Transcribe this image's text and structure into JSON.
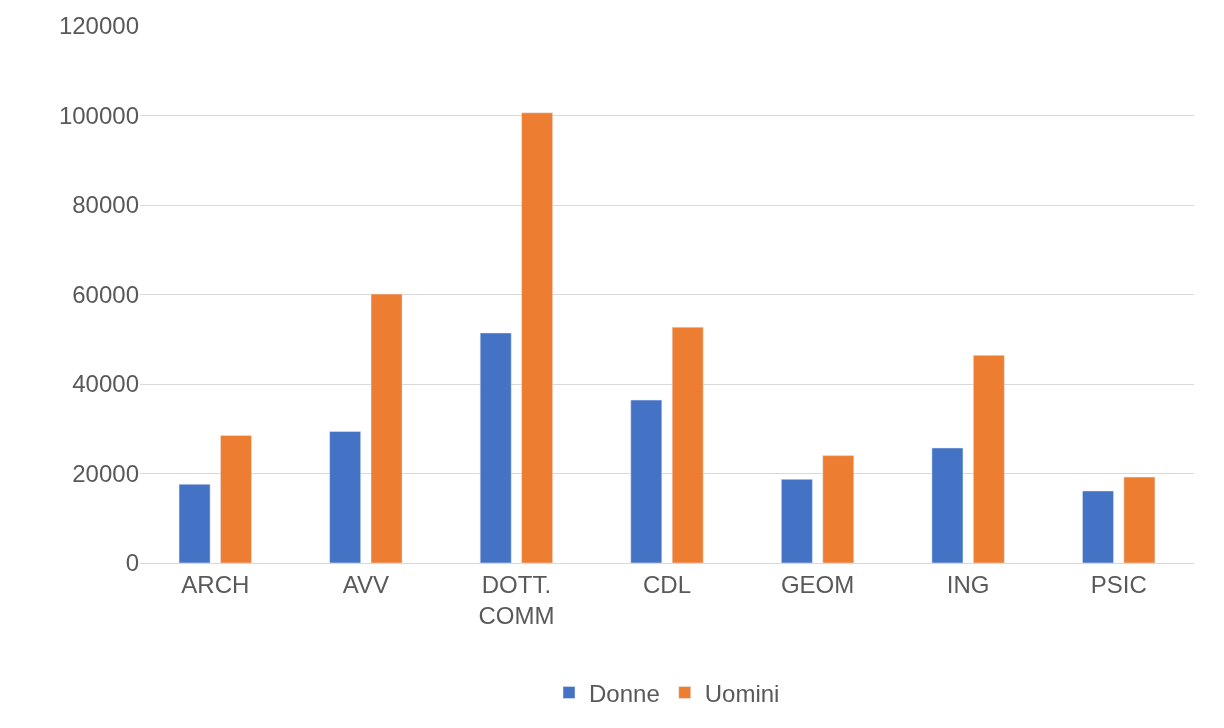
{
  "chart_data": {
    "type": "bar",
    "categories": [
      "ARCH",
      "AVV",
      "DOTT.\nCOMM",
      "CDL",
      "GEOM",
      "ING",
      "PSIC"
    ],
    "series": [
      {
        "name": "Donne",
        "color": "#4472c4",
        "values": [
          17600,
          29400,
          51400,
          36400,
          18700,
          25700,
          16100
        ]
      },
      {
        "name": "Uomini",
        "color": "#ed7d31",
        "values": [
          28500,
          60100,
          100600,
          52700,
          24000,
          46400,
          19200
        ]
      }
    ],
    "ylim": [
      0,
      120000
    ],
    "yticks": [
      0,
      20000,
      40000,
      60000,
      80000,
      100000,
      120000
    ],
    "grid": "y",
    "legend": "bottom"
  }
}
